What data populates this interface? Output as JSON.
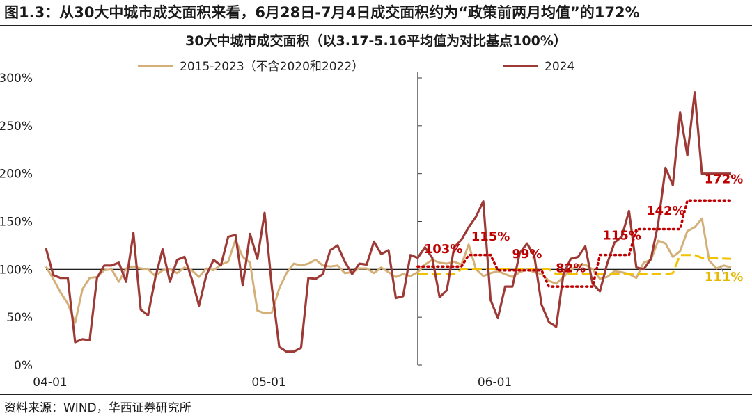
{
  "header": {
    "title": "图1.3：从30大中城市成交面积来看，6月28日-7月4日成交面积约为“政策前两月均值”的172%",
    "subtitle": "30大中城市成交面积（以3.17-5.16平均值为对比基点100%）"
  },
  "footer": {
    "source": "资料来源：WIND，华西证券研究所"
  },
  "chart_data": {
    "type": "line",
    "ylim": [
      0,
      300
    ],
    "yticks": [
      "0%",
      "50%",
      "100%",
      "150%",
      "200%",
      "250%",
      "300%"
    ],
    "ytick_values": [
      0,
      50,
      100,
      150,
      200,
      250,
      300
    ],
    "xticks": [
      {
        "label": "04-01",
        "day": 0
      },
      {
        "label": "05-01",
        "day": 30
      },
      {
        "label": "06-01",
        "day": 61
      }
    ],
    "x_range_days": [
      0,
      94
    ],
    "colors": {
      "series_2024": "#9E3A36",
      "series_hist": "#D4B078",
      "avg_2024": "#C00000",
      "avg_hist": "#F2C200",
      "baseline": "#000000"
    },
    "series": [
      {
        "name": "2015-2023（不含2020和2022）",
        "x": [
          0,
          1,
          2,
          3,
          4,
          5,
          6,
          7,
          8,
          9,
          10,
          11,
          12,
          13,
          14,
          15,
          16,
          17,
          18,
          19,
          20,
          21,
          22,
          23,
          24,
          25,
          26,
          27,
          28,
          29,
          30,
          31,
          32,
          33,
          34,
          35,
          36,
          37,
          38,
          39,
          40,
          41,
          42,
          43,
          44,
          45,
          46,
          47,
          48,
          49,
          50,
          51,
          52,
          53,
          54,
          55,
          56,
          57,
          58,
          59,
          60,
          61,
          62,
          63,
          64,
          65,
          66,
          67,
          68,
          69,
          70,
          71,
          72,
          73,
          74,
          75,
          76,
          77,
          78,
          79,
          80,
          81,
          82,
          83,
          84,
          85,
          86,
          87,
          88,
          89,
          90,
          91,
          92,
          93,
          94
        ],
        "values": [
          103,
          90,
          76,
          64,
          44,
          79,
          91,
          92,
          99,
          100,
          87,
          101,
          103,
          101,
          100,
          93,
          99,
          100,
          96,
          102,
          99,
          92,
          101,
          99,
          105,
          108,
          131,
          113,
          107,
          57,
          54,
          55,
          80,
          96,
          106,
          104,
          106,
          110,
          104,
          103,
          104,
          96,
          97,
          101,
          101,
          96,
          102,
          97,
          92,
          95,
          93,
          97,
          105,
          110,
          107,
          106,
          108,
          105,
          126,
          100,
          93,
          96,
          98,
          95,
          92,
          97,
          100,
          97,
          95,
          88,
          85,
          92,
          99,
          105,
          105,
          100,
          90,
          92,
          98,
          97,
          95,
          91,
          107,
          110,
          130,
          127,
          113,
          119,
          140,
          144,
          153,
          109,
          101,
          104,
          102
        ]
      },
      {
        "name": "2024",
        "x": [
          0,
          1,
          2,
          3,
          4,
          5,
          6,
          7,
          8,
          9,
          10,
          11,
          12,
          13,
          14,
          15,
          16,
          17,
          18,
          19,
          20,
          21,
          22,
          23,
          24,
          25,
          26,
          27,
          28,
          29,
          30,
          31,
          32,
          33,
          34,
          35,
          36,
          37,
          38,
          39,
          40,
          41,
          42,
          43,
          44,
          45,
          46,
          47,
          48,
          49,
          50,
          51,
          52,
          53,
          54,
          55,
          56,
          57,
          58,
          59,
          60,
          61,
          62,
          63,
          64,
          65,
          66,
          67,
          68,
          69,
          70,
          71,
          72,
          73,
          74,
          75,
          76,
          77,
          78,
          79,
          80,
          81,
          82,
          83,
          84,
          85,
          86,
          87,
          88,
          89,
          90,
          91,
          92,
          93,
          94
        ],
        "values": [
          122,
          94,
          91,
          91,
          24,
          27,
          26,
          91,
          104,
          104,
          107,
          87,
          138,
          58,
          52,
          91,
          121,
          87,
          110,
          113,
          90,
          62,
          94,
          110,
          104,
          134,
          136,
          83,
          137,
          111,
          159,
          81,
          19,
          14,
          14,
          18,
          91,
          90,
          95,
          120,
          125,
          108,
          95,
          106,
          105,
          129,
          116,
          120,
          70,
          72,
          115,
          112,
          123,
          112,
          71,
          78,
          123,
          131,
          144,
          155,
          171,
          68,
          49,
          82,
          82,
          117,
          127,
          114,
          63,
          45,
          40,
          95,
          111,
          113,
          124,
          85,
          77,
          106,
          128,
          134,
          161,
          102,
          100,
          111,
          148,
          206,
          188,
          264,
          219,
          285,
          200,
          200,
          200,
          200,
          200
        ]
      }
    ],
    "period_averages": [
      {
        "series": "2024",
        "label": "103%",
        "value": 103
      },
      {
        "series": "2024",
        "label": "115%",
        "value": 115
      },
      {
        "series": "2024",
        "label": "99%",
        "value": 99
      },
      {
        "series": "2024",
        "label": "82%",
        "value": 82
      },
      {
        "series": "2024",
        "label": "115%",
        "value": 115
      },
      {
        "series": "2024",
        "label": "142%",
        "value": 142
      },
      {
        "series": "2024",
        "label": "172%",
        "value": 172
      },
      {
        "series": "2015-2023（不含2020和2022）",
        "label": "111%",
        "value": 111
      }
    ]
  }
}
